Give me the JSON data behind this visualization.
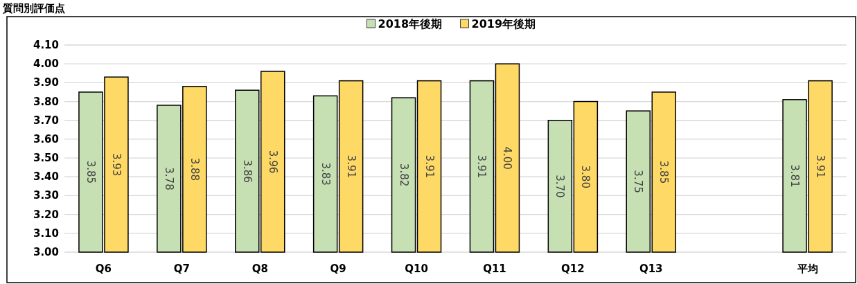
{
  "chart_data": {
    "type": "bar",
    "title": "質問別評価点",
    "categories": [
      "Q6",
      "Q7",
      "Q8",
      "Q9",
      "Q10",
      "Q11",
      "Q12",
      "Q13",
      null,
      "平均"
    ],
    "series": [
      {
        "name": "2018年後期",
        "color": "#c6e0b4",
        "values": [
          3.85,
          3.78,
          3.86,
          3.83,
          3.82,
          3.91,
          3.7,
          3.75,
          null,
          3.81
        ],
        "value_labels": [
          "3.85",
          "3.78",
          "3.86",
          "3.83",
          "3.82",
          "3.91",
          "3.70",
          "3.75",
          null,
          "3.81"
        ]
      },
      {
        "name": "2019年後期",
        "color": "#ffd966",
        "values": [
          3.93,
          3.88,
          3.96,
          3.91,
          3.91,
          4.0,
          3.8,
          3.85,
          null,
          3.91
        ],
        "value_labels": [
          "3.93",
          "3.88",
          "3.96",
          "3.91",
          "3.91",
          "4.00",
          "3.80",
          "3.85",
          null,
          "3.91"
        ]
      }
    ],
    "ylim": [
      3.0,
      4.1
    ],
    "yticks": [
      {
        "value": 3.0,
        "label": "3.00"
      },
      {
        "value": 3.1,
        "label": "3.10"
      },
      {
        "value": 3.2,
        "label": "3.20"
      },
      {
        "value": 3.3,
        "label": "3.30"
      },
      {
        "value": 3.4,
        "label": "3.40"
      },
      {
        "value": 3.5,
        "label": "3.50"
      },
      {
        "value": 3.6,
        "label": "3.60"
      },
      {
        "value": 3.7,
        "label": "3.70"
      },
      {
        "value": 3.8,
        "label": "3.80"
      },
      {
        "value": 3.9,
        "label": "3.90"
      },
      {
        "value": 4.0,
        "label": "4.00"
      },
      {
        "value": 4.1,
        "label": "4.10"
      }
    ],
    "grid": "y",
    "legend": "top"
  }
}
